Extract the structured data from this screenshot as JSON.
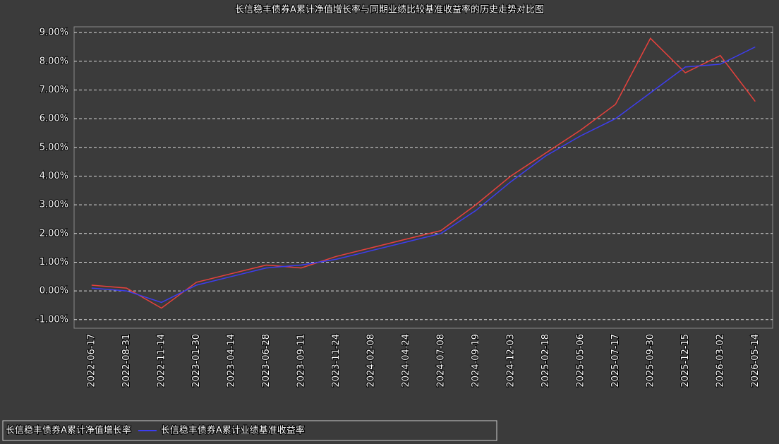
{
  "chart_data": {
    "type": "line",
    "title": "长信稳丰债券A累计净值增长率与同期业绩比较基准收益率的历史走势对比图",
    "categories": [
      "2022-06-17",
      "2022-08-31",
      "2022-11-14",
      "2023-01-30",
      "2023-04-14",
      "2023-06-28",
      "2023-09-11",
      "2023-11-24",
      "2024-02-08",
      "2024-04-24",
      "2024-07-08",
      "2024-09-19",
      "2024-12-03",
      "2025-02-18",
      "2025-05-06",
      "2025-07-17",
      "2025-09-30",
      "2025-12-15",
      "2026-03-02",
      "2026-05-14"
    ],
    "series": [
      {
        "name": "长信稳丰债券A累计净值增长率",
        "color": "#e8413c",
        "values": [
          0.2,
          0.1,
          -0.6,
          0.3,
          0.6,
          0.9,
          0.8,
          1.2,
          1.5,
          1.8,
          2.1,
          3.0,
          4.0,
          4.8,
          5.6,
          6.5,
          8.8,
          7.6,
          8.2,
          6.6
        ]
      },
      {
        "name": "长信稳丰债券A累计业绩基准收益率",
        "color": "#3d3df0",
        "values": [
          0.1,
          0.0,
          -0.4,
          0.2,
          0.5,
          0.8,
          0.9,
          1.1,
          1.4,
          1.7,
          2.0,
          2.8,
          3.8,
          4.7,
          5.4,
          6.0,
          6.9,
          7.8,
          7.9,
          8.5
        ]
      }
    ],
    "ylim": [
      -1.3,
      9.2
    ],
    "yticks": [
      {
        "value": -1,
        "label": "-1.00%"
      },
      {
        "value": 0,
        "label": "0.00%"
      },
      {
        "value": 1,
        "label": "1.00%"
      },
      {
        "value": 2,
        "label": "2.00%"
      },
      {
        "value": 3,
        "label": "3.00%"
      },
      {
        "value": 4,
        "label": "4.00%"
      },
      {
        "value": 5,
        "label": "5.00%"
      },
      {
        "value": 6,
        "label": "6.00%"
      },
      {
        "value": 7,
        "label": "7.00%"
      },
      {
        "value": 8,
        "label": "8.00%"
      },
      {
        "value": 9,
        "label": "9.00%"
      }
    ],
    "grid": true
  }
}
